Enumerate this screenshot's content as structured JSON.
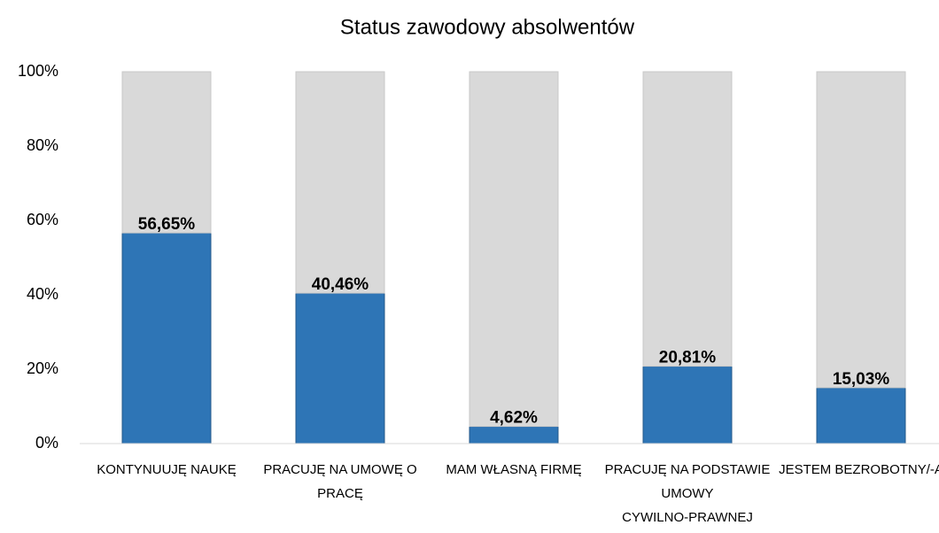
{
  "chart_data": {
    "type": "bar",
    "stacked": true,
    "title": "Status zawodowy absolwentów",
    "categories": [
      "KONTYNUUJĘ NAUKĘ",
      "PRACUJĘ NA UMOWĘ O PRACĘ",
      "MAM WŁASNĄ FIRMĘ",
      "PRACUJĘ NA PODSTAWIE UMOWY CYWILNO-PRAWNEJ",
      "JESTEM BEZROBOTNY/-A"
    ],
    "series": [
      {
        "color": "#2e75b6",
        "values": [
          56.65,
          40.46,
          4.62,
          20.81,
          15.03
        ],
        "value_labels": [
          "56,65%",
          "40,46%",
          "4,62%",
          "20,81%",
          "15,03%"
        ]
      },
      {
        "color": "#d9d9d9",
        "values": [
          43.35,
          59.54,
          95.38,
          79.19,
          84.97
        ]
      }
    ],
    "ylim": [
      0,
      100
    ],
    "yticks": [
      {
        "value": 0,
        "label": "0%"
      },
      {
        "value": 20,
        "label": "20%"
      },
      {
        "value": 40,
        "label": "40%"
      },
      {
        "value": 60,
        "label": "60%"
      },
      {
        "value": 80,
        "label": "80%"
      },
      {
        "value": 100,
        "label": "100%"
      }
    ],
    "grid": false
  }
}
